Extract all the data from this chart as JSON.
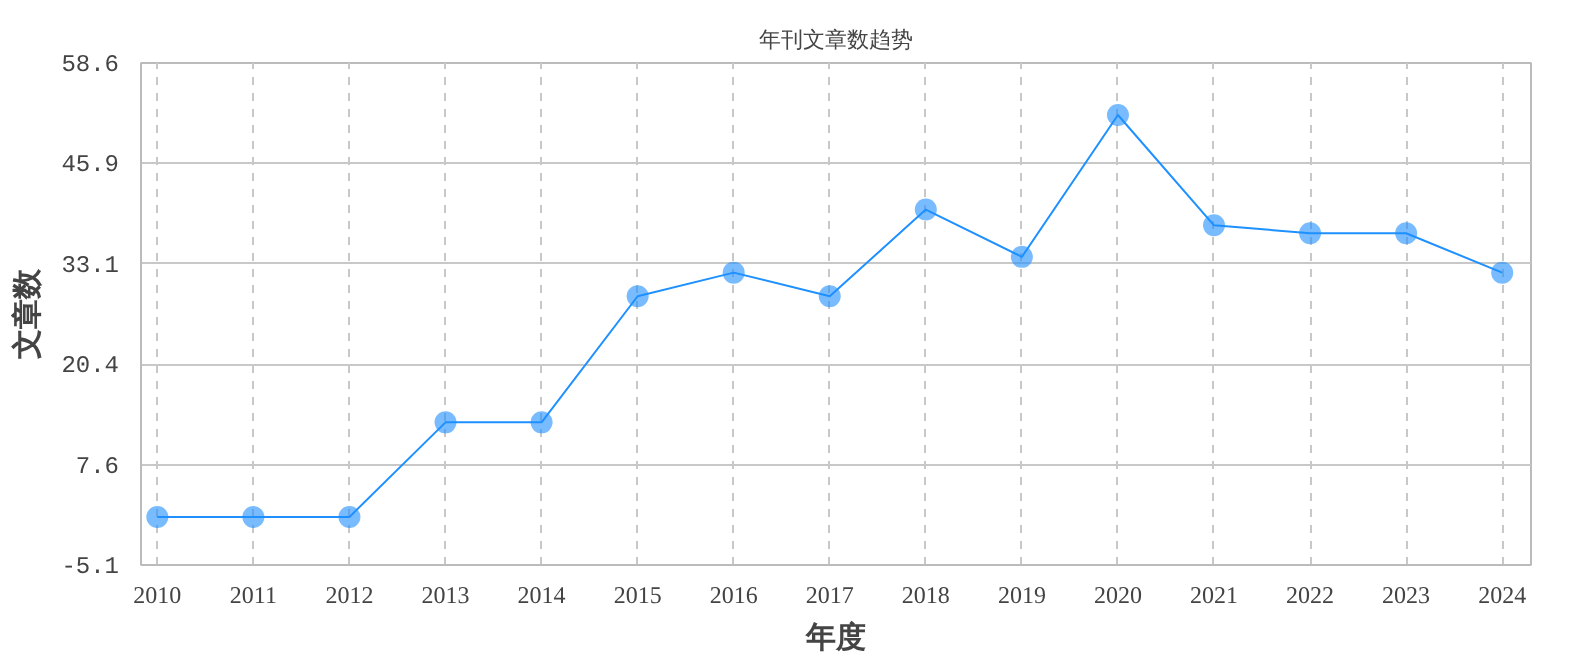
{
  "chart_data": {
    "type": "line",
    "title": "年刊文章数趋势",
    "xlabel": "年度",
    "ylabel": "文章数",
    "categories": [
      "2010",
      "2011",
      "2012",
      "2013",
      "2014",
      "2015",
      "2016",
      "2017",
      "2018",
      "2019",
      "2020",
      "2021",
      "2022",
      "2023",
      "2024"
    ],
    "series": [
      {
        "color": "#1e90ff",
        "values": [
          1,
          1,
          1,
          13,
          13,
          29,
          32,
          29,
          40,
          34,
          52,
          38,
          37,
          37,
          32
        ]
      }
    ],
    "ylim": [
      -5.1,
      58.6
    ],
    "yticks": [
      -5.1,
      7.6,
      20.4,
      33.1,
      45.9,
      58.6
    ],
    "grid": true,
    "marker": "circle",
    "line_style": "solid"
  }
}
